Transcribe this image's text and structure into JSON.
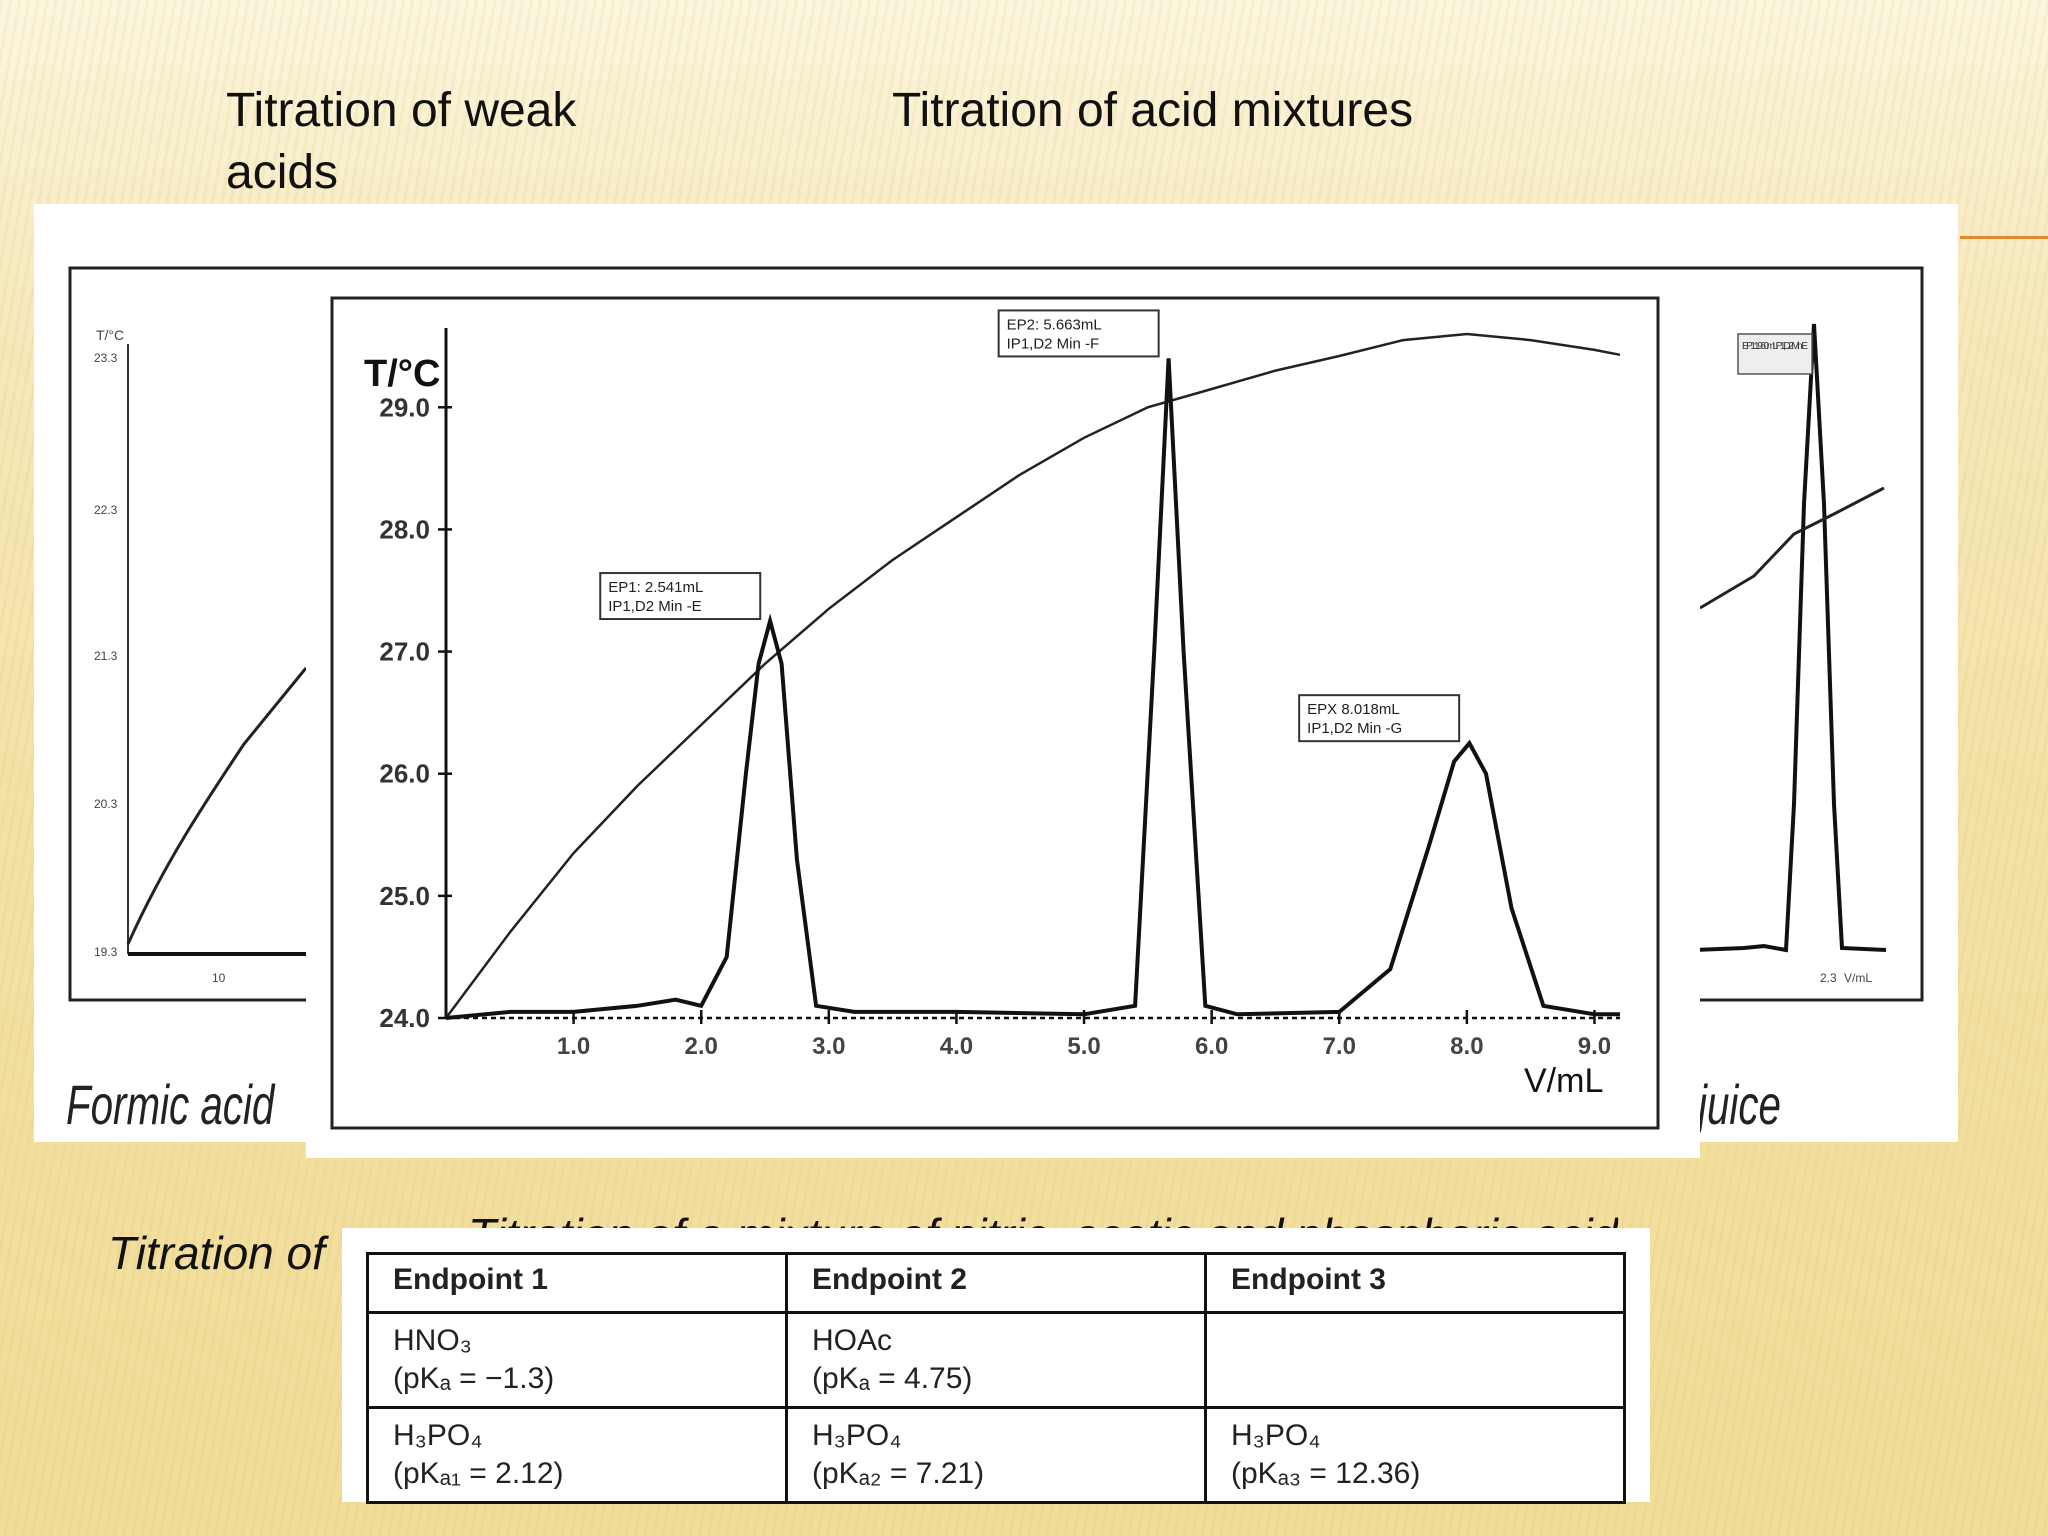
{
  "headings": {
    "left": "Titration of weak acids",
    "right": "Titration of acid mixtures"
  },
  "captions": {
    "formic": "Formic acid",
    "juice": "juice",
    "bottom_left": "Titration of",
    "bottom_center": "Titration of a mixture of nitric, acetic and phosphoric acid"
  },
  "back_chart": {
    "left_ylabel": "T/°C",
    "left_yticks": [
      "23.3",
      "22.3",
      "21.3",
      "20.3",
      "19.3"
    ],
    "left_xtick": "10",
    "right_label": "EP1: 1.960mL IP1,D2 Min -E",
    "right_xtick": "2.3",
    "right_xlabel": "V/mL"
  },
  "chart_data": {
    "type": "line",
    "title": "",
    "xlabel": "V/mL",
    "ylabel": "T/°C",
    "xlim": [
      0,
      9.2
    ],
    "ylim": [
      24.0,
      29.6
    ],
    "xticks": [
      1.0,
      2.0,
      3.0,
      4.0,
      5.0,
      6.0,
      7.0,
      8.0,
      9.0
    ],
    "yticks": [
      24.0,
      25.0,
      26.0,
      27.0,
      28.0,
      29.0
    ],
    "series": [
      {
        "role": "temperature",
        "x": [
          0.0,
          0.5,
          1.0,
          1.5,
          2.0,
          2.5,
          3.0,
          3.5,
          4.0,
          4.5,
          5.0,
          5.5,
          6.0,
          6.5,
          7.0,
          7.5,
          8.0,
          8.5,
          9.0,
          9.2
        ],
        "y": [
          24.0,
          24.7,
          25.35,
          25.9,
          26.4,
          26.9,
          27.35,
          27.75,
          28.1,
          28.45,
          28.75,
          29.0,
          29.15,
          29.3,
          29.42,
          29.55,
          29.6,
          29.55,
          29.47,
          29.43
        ]
      },
      {
        "role": "derivative",
        "x": [
          0.0,
          0.5,
          1.0,
          1.5,
          1.8,
          2.0,
          2.2,
          2.35,
          2.45,
          2.54,
          2.63,
          2.75,
          2.9,
          3.2,
          4.0,
          5.0,
          5.4,
          5.55,
          5.663,
          5.78,
          5.95,
          6.2,
          7.0,
          7.4,
          7.7,
          7.9,
          8.02,
          8.15,
          8.35,
          8.6,
          9.0,
          9.2
        ],
        "y": [
          24.0,
          24.05,
          24.05,
          24.1,
          24.15,
          24.1,
          24.5,
          26.0,
          26.9,
          27.25,
          26.9,
          25.3,
          24.1,
          24.05,
          24.05,
          24.03,
          24.1,
          27.0,
          29.4,
          27.0,
          24.1,
          24.03,
          24.05,
          24.4,
          25.4,
          26.1,
          26.25,
          26.0,
          24.9,
          24.1,
          24.03,
          24.03
        ]
      }
    ],
    "annotations": [
      {
        "x": 2.541,
        "y": 27.25,
        "text": [
          "EP1: 2.541mL",
          "IP1,D2 Min -E"
        ]
      },
      {
        "x": 5.663,
        "y": 29.4,
        "text": [
          "EP2: 5.663mL",
          "IP1,D2 Min -F"
        ]
      },
      {
        "x": 8.018,
        "y": 26.25,
        "text": [
          "EPX 8.018mL",
          "IP1,D2 Min -G"
        ]
      }
    ]
  },
  "table": {
    "headers": [
      "Endpoint 1",
      "Endpoint 2",
      "Endpoint 3"
    ],
    "rows": [
      [
        {
          "line1": "HNO₃",
          "line2": "(pKₐ = −1.3)"
        },
        {
          "line1": "HOAc",
          "line2": "(pKₐ = 4.75)"
        },
        {
          "line1": "",
          "line2": ""
        }
      ],
      [
        {
          "line1": "H₃PO₄",
          "line2": "(pKₐ₁ = 2.12)"
        },
        {
          "line1": "H₃PO₄",
          "line2": "(pKₐ₂ = 7.21)"
        },
        {
          "line1": "H₃PO₄",
          "line2": "(pKₐ₃ = 12.36)"
        }
      ]
    ]
  },
  "colors": {
    "accent": "#e08a2c",
    "ink": "#111111"
  }
}
